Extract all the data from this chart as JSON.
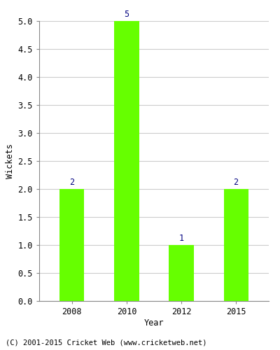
{
  "years": [
    "2008",
    "2010",
    "2012",
    "2015"
  ],
  "values": [
    2,
    5,
    1,
    2
  ],
  "bar_color": "#66ff00",
  "label_color": "#000080",
  "ylabel": "Wickets",
  "xlabel": "Year",
  "ylim": [
    0,
    5.0
  ],
  "yticks": [
    0.0,
    0.5,
    1.0,
    1.5,
    2.0,
    2.5,
    3.0,
    3.5,
    4.0,
    4.5,
    5.0
  ],
  "footer": "(C) 2001-2015 Cricket Web (www.cricketweb.net)",
  "bar_width": 0.45,
  "grid_color": "#cccccc",
  "background_color": "#ffffff",
  "axis_bg_color": "#ffffff",
  "tick_color": "#555555",
  "spine_color": "#888888"
}
